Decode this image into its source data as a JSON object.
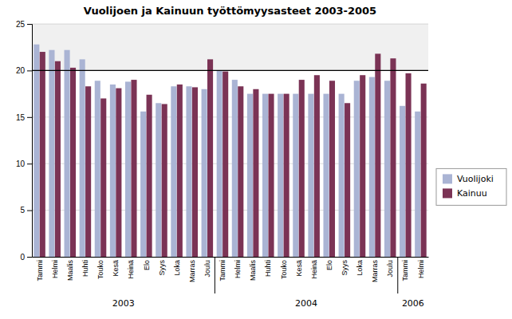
{
  "chart_data": {
    "type": "bar",
    "title": "Vuolijoen ja Kainuun työttömyysasteet 2003-2005",
    "categories": [
      "Tammi",
      "Helmi",
      "Maalis",
      "Huhti",
      "Touko",
      "Kesä",
      "Heinä",
      "Elo",
      "Syys",
      "Loka",
      "Marras",
      "Joulu",
      "Tammi",
      "Helmi",
      "Maalis",
      "Huhti",
      "Touko",
      "Kesä",
      "Heinä",
      "Elo",
      "Syys",
      "Loka",
      "Marras",
      "Joulu",
      "Tammi",
      "Helmi"
    ],
    "series": [
      {
        "name": "Vuolijoki",
        "color": "#aab4d4",
        "values": [
          22.8,
          22.2,
          22.2,
          21.2,
          18.9,
          18.5,
          18.8,
          15.6,
          16.5,
          18.3,
          18.3,
          18.0,
          20.0,
          19.0,
          17.5,
          17.5,
          17.5,
          17.5,
          17.5,
          17.5,
          17.5,
          18.9,
          19.3,
          18.9,
          16.2,
          15.6
        ]
      },
      {
        "name": "Kainuu",
        "color": "#7b3355",
        "values": [
          22.0,
          21.0,
          20.3,
          18.3,
          17.0,
          18.1,
          19.0,
          17.4,
          16.4,
          18.5,
          18.2,
          21.2,
          19.9,
          18.3,
          18.0,
          17.5,
          17.5,
          19.0,
          19.5,
          18.9,
          16.5,
          19.5,
          21.8,
          21.3,
          19.7,
          18.6
        ]
      }
    ],
    "annotations": [
      "2003",
      "2004",
      "2006"
    ],
    "reference_lines": [
      20
    ],
    "ylim": [
      0,
      25
    ],
    "yticks": [
      0,
      5,
      10,
      15,
      20,
      25
    ],
    "grid": true,
    "legend": "right"
  }
}
